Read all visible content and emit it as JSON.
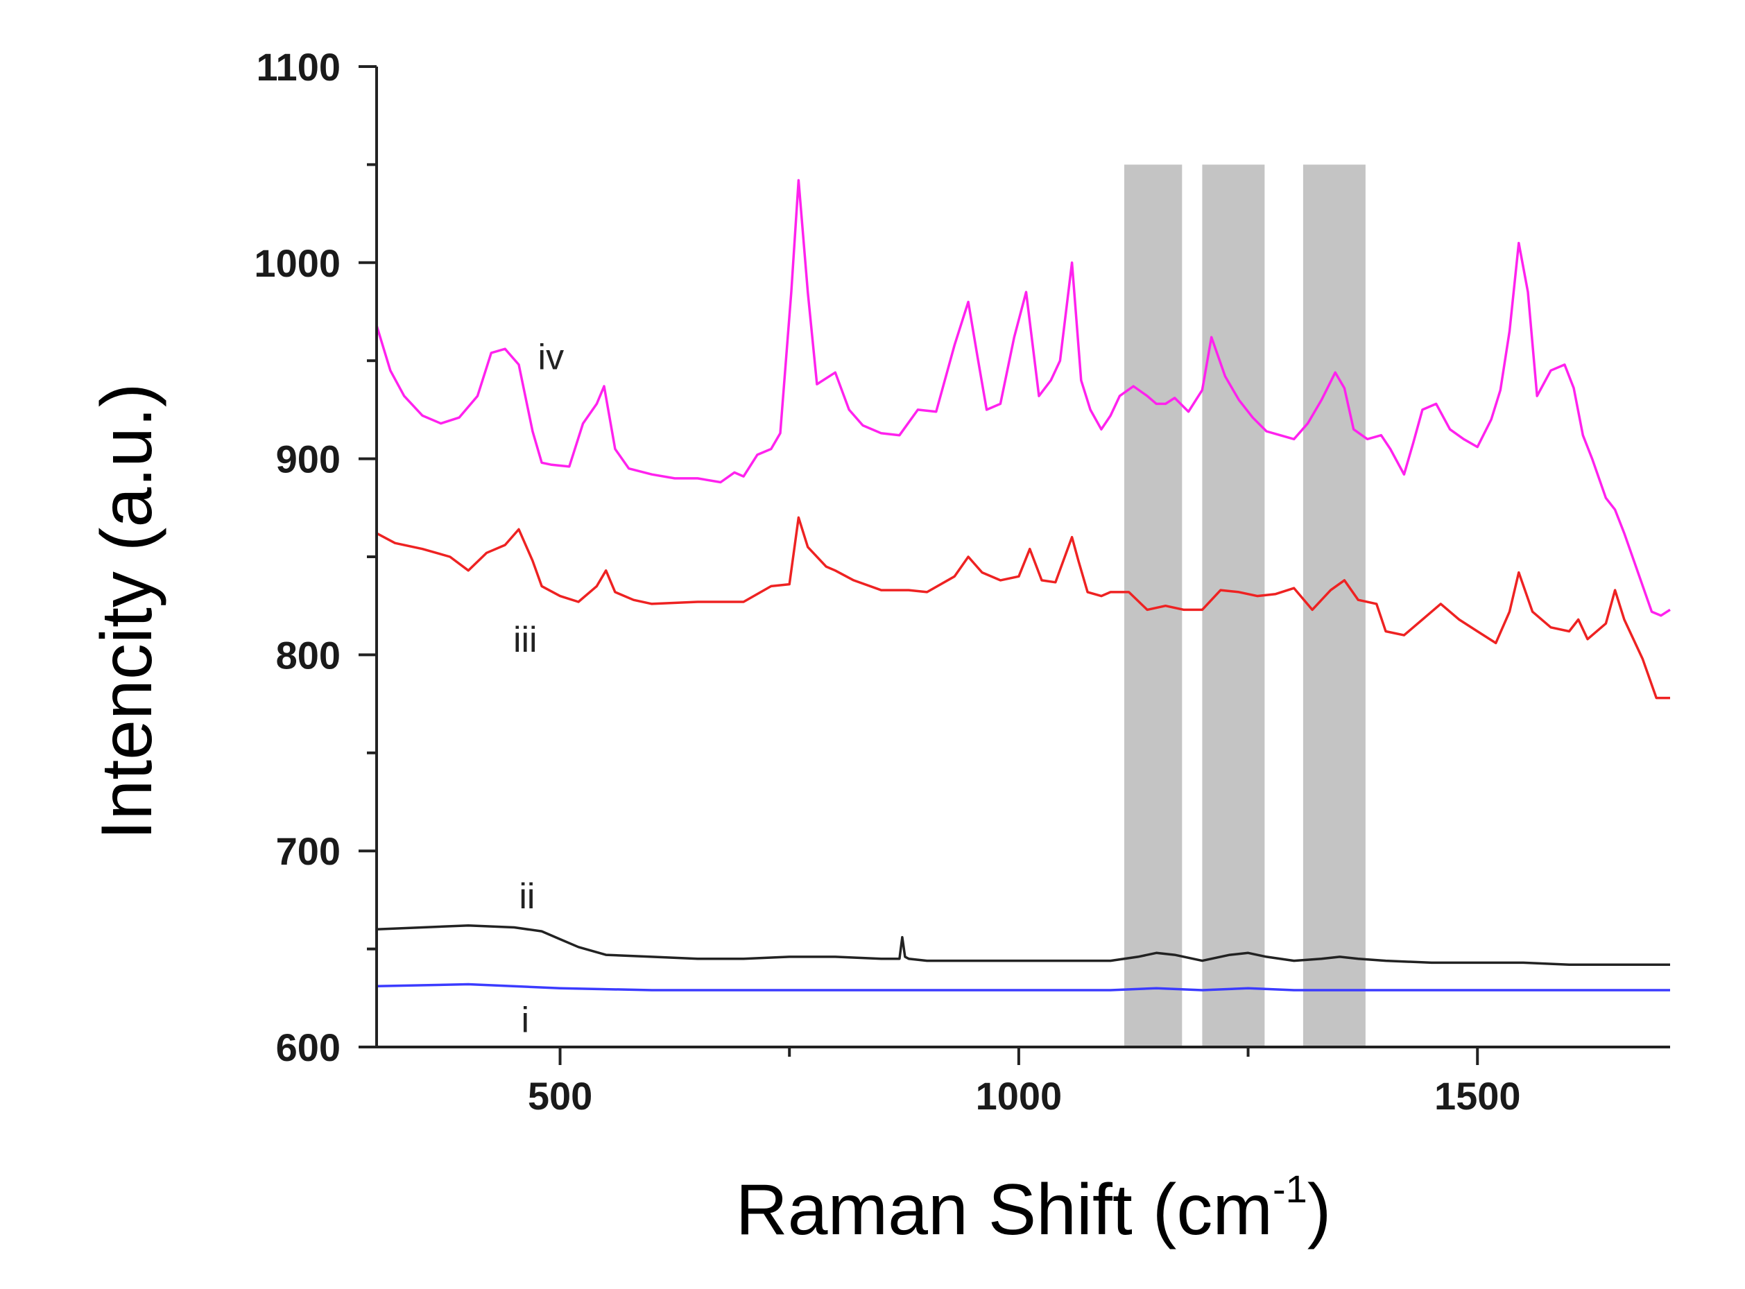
{
  "chart_data": {
    "type": "line",
    "title": "",
    "xlabel": "Raman Shift (cm",
    "xlabel_superscript": "-1",
    "xlabel_suffix": ")",
    "ylabel": "Intencity (a.u.)",
    "xlim": [
      300,
      1710
    ],
    "ylim": [
      600,
      1100
    ],
    "xticks": [
      500,
      1000,
      1500
    ],
    "xtick_labels": [
      "500",
      "1000",
      "1500"
    ],
    "yticks": [
      600,
      700,
      800,
      900,
      1000,
      1100
    ],
    "ytick_labels": [
      "600",
      "700",
      "800",
      "900",
      "1000",
      "1100"
    ],
    "shaded_regions": [
      {
        "x_start": 1115,
        "x_end": 1178,
        "y_top": 1050,
        "color": "#c4c4c4"
      },
      {
        "x_start": 1200,
        "x_end": 1268,
        "y_top": 1050,
        "color": "#c4c4c4"
      },
      {
        "x_start": 1310,
        "x_end": 1378,
        "y_top": 1050,
        "color": "#c4c4c4"
      }
    ],
    "series": [
      {
        "name": "i",
        "label": "i",
        "color": "#3b3bff",
        "label_x": 462,
        "label_y": 614,
        "x": [
          300,
          400,
          500,
          600,
          700,
          800,
          900,
          1000,
          1100,
          1150,
          1200,
          1250,
          1300,
          1400,
          1500,
          1600,
          1710
        ],
        "y": [
          631,
          632,
          630,
          629,
          629,
          629,
          629,
          629,
          629,
          630,
          629,
          630,
          629,
          629,
          629,
          629,
          629
        ]
      },
      {
        "name": "ii",
        "label": "ii",
        "color": "#222222",
        "label_x": 464,
        "label_y": 677,
        "x": [
          300,
          350,
          400,
          450,
          480,
          500,
          520,
          550,
          600,
          650,
          700,
          750,
          800,
          850,
          870,
          873,
          876,
          880,
          900,
          950,
          1000,
          1050,
          1100,
          1130,
          1150,
          1170,
          1200,
          1230,
          1250,
          1270,
          1300,
          1330,
          1350,
          1370,
          1400,
          1450,
          1500,
          1550,
          1600,
          1650,
          1710
        ],
        "y": [
          660,
          661,
          662,
          661,
          659,
          655,
          651,
          647,
          646,
          645,
          645,
          646,
          646,
          645,
          645,
          656,
          646,
          645,
          644,
          644,
          644,
          644,
          644,
          646,
          648,
          647,
          644,
          647,
          648,
          646,
          644,
          645,
          646,
          645,
          644,
          643,
          643,
          643,
          642,
          642,
          642
        ]
      },
      {
        "name": "iii",
        "label": "iii",
        "color": "#ee2222",
        "label_x": 462,
        "label_y": 808,
        "x": [
          300,
          320,
          350,
          380,
          400,
          420,
          440,
          455,
          470,
          480,
          500,
          520,
          540,
          550,
          560,
          580,
          600,
          650,
          700,
          730,
          750,
          760,
          770,
          790,
          800,
          820,
          850,
          880,
          900,
          930,
          945,
          960,
          980,
          1000,
          1012,
          1025,
          1040,
          1058,
          1065,
          1075,
          1090,
          1100,
          1120,
          1140,
          1160,
          1180,
          1200,
          1220,
          1240,
          1260,
          1280,
          1300,
          1320,
          1340,
          1355,
          1370,
          1390,
          1400,
          1420,
          1440,
          1460,
          1480,
          1500,
          1520,
          1535,
          1545,
          1560,
          1580,
          1600,
          1610,
          1620,
          1640,
          1650,
          1660,
          1680,
          1695,
          1710
        ],
        "y": [
          862,
          857,
          854,
          850,
          843,
          852,
          856,
          864,
          848,
          835,
          830,
          827,
          835,
          843,
          832,
          828,
          826,
          827,
          827,
          835,
          836,
          870,
          855,
          845,
          843,
          838,
          833,
          833,
          832,
          840,
          850,
          842,
          838,
          840,
          854,
          838,
          837,
          860,
          848,
          832,
          830,
          832,
          832,
          823,
          825,
          823,
          823,
          833,
          832,
          830,
          831,
          834,
          823,
          833,
          838,
          828,
          826,
          812,
          810,
          818,
          826,
          818,
          812,
          806,
          822,
          842,
          822,
          814,
          812,
          818,
          808,
          816,
          833,
          818,
          798,
          778,
          778
        ]
      },
      {
        "name": "iv",
        "label": "iv",
        "color": "#ff22ee",
        "label_x": 490,
        "label_y": 952,
        "x": [
          300,
          315,
          330,
          350,
          370,
          390,
          410,
          425,
          440,
          455,
          470,
          480,
          490,
          510,
          525,
          540,
          548,
          560,
          575,
          600,
          625,
          650,
          675,
          690,
          700,
          715,
          730,
          740,
          752,
          760,
          770,
          780,
          800,
          815,
          830,
          850,
          870,
          890,
          910,
          930,
          945,
          955,
          965,
          980,
          995,
          1008,
          1022,
          1035,
          1045,
          1058,
          1068,
          1078,
          1090,
          1100,
          1110,
          1125,
          1140,
          1150,
          1160,
          1170,
          1185,
          1200,
          1210,
          1225,
          1240,
          1255,
          1270,
          1285,
          1300,
          1315,
          1330,
          1345,
          1355,
          1365,
          1380,
          1395,
          1405,
          1420,
          1430,
          1440,
          1455,
          1470,
          1485,
          1500,
          1515,
          1525,
          1535,
          1545,
          1555,
          1565,
          1580,
          1595,
          1605,
          1615,
          1625,
          1640,
          1650,
          1660,
          1675,
          1690,
          1700,
          1710
        ],
        "y": [
          968,
          945,
          932,
          922,
          918,
          921,
          932,
          954,
          956,
          948,
          914,
          898,
          897,
          896,
          918,
          928,
          937,
          905,
          895,
          892,
          890,
          890,
          888,
          893,
          891,
          902,
          905,
          913,
          985,
          1042,
          985,
          938,
          944,
          925,
          917,
          913,
          912,
          925,
          924,
          958,
          980,
          952,
          925,
          928,
          962,
          985,
          932,
          940,
          950,
          1000,
          940,
          925,
          915,
          922,
          932,
          937,
          932,
          928,
          928,
          931,
          924,
          935,
          962,
          942,
          930,
          921,
          914,
          912,
          910,
          918,
          930,
          944,
          936,
          915,
          910,
          912,
          905,
          892,
          908,
          925,
          928,
          915,
          910,
          906,
          920,
          935,
          965,
          1010,
          985,
          932,
          945,
          948,
          936,
          912,
          900,
          880,
          874,
          862,
          842,
          822,
          820,
          823
        ]
      }
    ]
  }
}
